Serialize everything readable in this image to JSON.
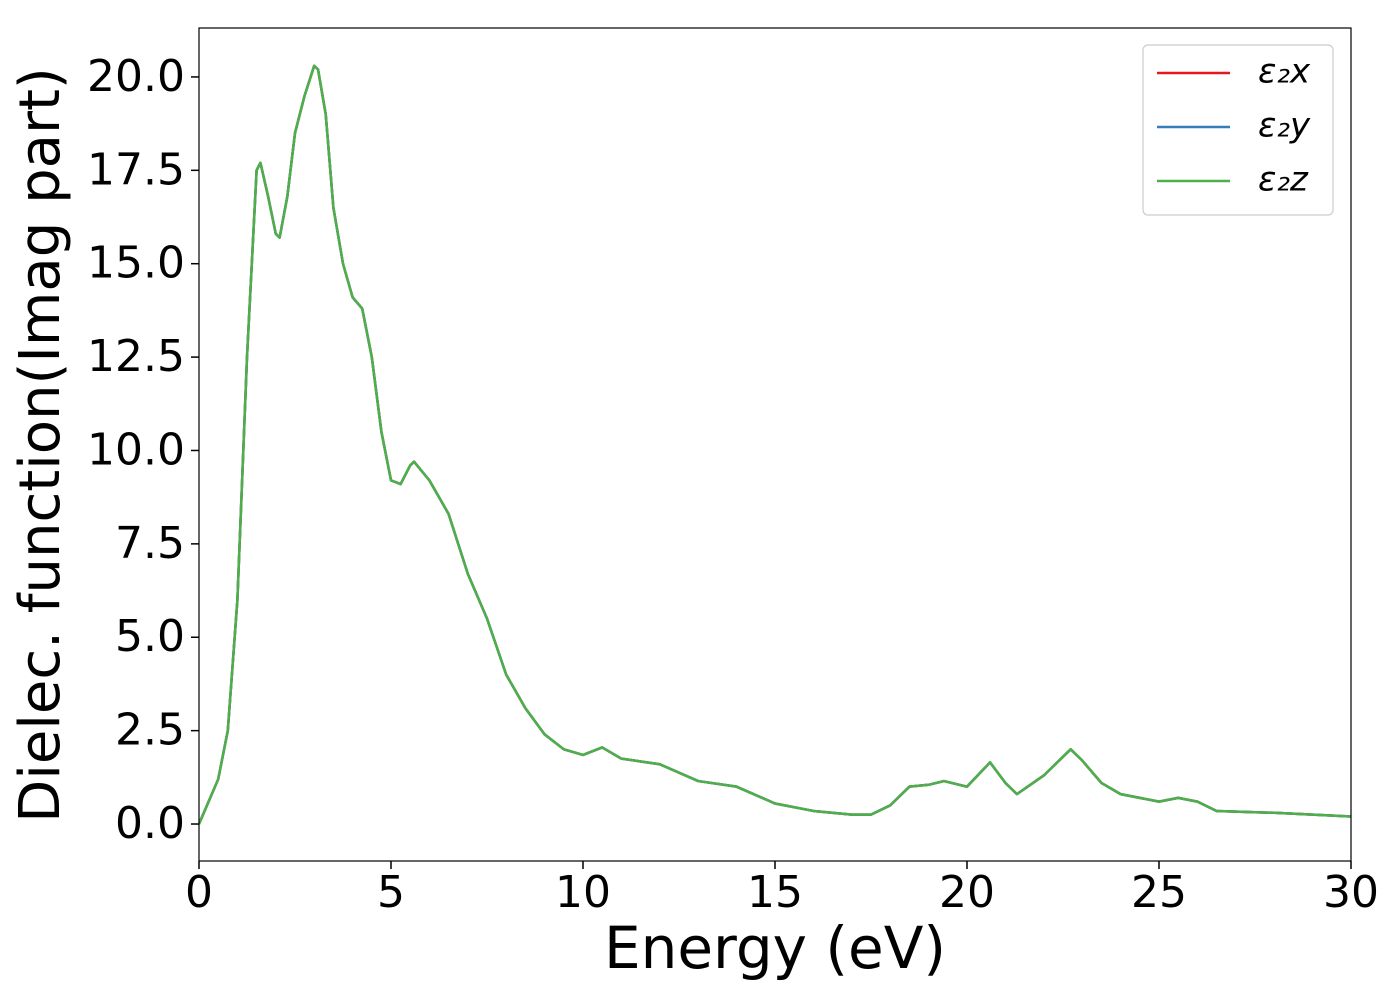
{
  "chart_data": {
    "type": "line",
    "xlabel": "Energy (eV)",
    "ylabel": "Dielec. function(Imag part)",
    "x": [
      0,
      0.25,
      0.5,
      0.75,
      1.0,
      1.25,
      1.5,
      1.6,
      1.8,
      2.0,
      2.1,
      2.3,
      2.5,
      2.75,
      3.0,
      3.1,
      3.3,
      3.5,
      3.75,
      4.0,
      4.25,
      4.5,
      4.75,
      5.0,
      5.25,
      5.5,
      5.6,
      6.0,
      6.5,
      7.0,
      7.5,
      8.0,
      8.5,
      9.0,
      9.5,
      10.0,
      10.5,
      11.0,
      12.0,
      13.0,
      14.0,
      15.0,
      16.0,
      17.0,
      17.5,
      18.0,
      18.5,
      19.0,
      19.4,
      20.0,
      20.6,
      21.0,
      21.3,
      22.0,
      22.7,
      23.0,
      23.5,
      24.0,
      25.0,
      25.5,
      26.0,
      26.5,
      28.0,
      29.0,
      30.0
    ],
    "series": [
      {
        "name": "ε₂x",
        "color": "#e41a1c",
        "values": [
          0.0,
          0.6,
          1.2,
          2.5,
          6.0,
          12.5,
          17.5,
          17.7,
          16.8,
          15.8,
          15.7,
          16.8,
          18.5,
          19.5,
          20.3,
          20.2,
          19.0,
          16.5,
          15.0,
          14.1,
          13.8,
          12.5,
          10.5,
          9.2,
          9.1,
          9.6,
          9.7,
          9.2,
          8.3,
          6.7,
          5.5,
          4.0,
          3.1,
          2.4,
          2.0,
          1.85,
          2.05,
          1.75,
          1.6,
          1.15,
          1.0,
          0.55,
          0.35,
          0.25,
          0.25,
          0.5,
          1.0,
          1.05,
          1.15,
          1.0,
          1.65,
          1.1,
          0.8,
          1.3,
          2.0,
          1.7,
          1.1,
          0.8,
          0.6,
          0.7,
          0.6,
          0.35,
          0.3,
          0.25,
          0.2
        ]
      },
      {
        "name": "ε₂y",
        "color": "#377eb8",
        "values": [
          0.0,
          0.6,
          1.2,
          2.5,
          6.0,
          12.5,
          17.5,
          17.7,
          16.8,
          15.8,
          15.7,
          16.8,
          18.5,
          19.5,
          20.3,
          20.2,
          19.0,
          16.5,
          15.0,
          14.1,
          13.8,
          12.5,
          10.5,
          9.2,
          9.1,
          9.6,
          9.7,
          9.2,
          8.3,
          6.7,
          5.5,
          4.0,
          3.1,
          2.4,
          2.0,
          1.85,
          2.05,
          1.75,
          1.6,
          1.15,
          1.0,
          0.55,
          0.35,
          0.25,
          0.25,
          0.5,
          1.0,
          1.05,
          1.15,
          1.0,
          1.65,
          1.1,
          0.8,
          1.3,
          2.0,
          1.7,
          1.1,
          0.8,
          0.6,
          0.7,
          0.6,
          0.35,
          0.3,
          0.25,
          0.2
        ]
      },
      {
        "name": "ε₂z",
        "color": "#4daf4a",
        "values": [
          0.0,
          0.6,
          1.2,
          2.5,
          6.0,
          12.5,
          17.5,
          17.7,
          16.8,
          15.8,
          15.7,
          16.8,
          18.5,
          19.5,
          20.3,
          20.2,
          19.0,
          16.5,
          15.0,
          14.1,
          13.8,
          12.5,
          10.5,
          9.2,
          9.1,
          9.6,
          9.7,
          9.2,
          8.3,
          6.7,
          5.5,
          4.0,
          3.1,
          2.4,
          2.0,
          1.85,
          2.05,
          1.75,
          1.6,
          1.15,
          1.0,
          0.55,
          0.35,
          0.25,
          0.25,
          0.5,
          1.0,
          1.05,
          1.15,
          1.0,
          1.65,
          1.1,
          0.8,
          1.3,
          2.0,
          1.7,
          1.1,
          0.8,
          0.6,
          0.7,
          0.6,
          0.35,
          0.3,
          0.25,
          0.2
        ]
      }
    ],
    "xlim": [
      0,
      30
    ],
    "xticks": [
      0,
      5,
      10,
      15,
      20,
      25,
      30
    ],
    "ylim": [
      -0.99,
      21.31
    ],
    "yticks": [
      {
        "value": 0,
        "label": "0.0"
      },
      2.5,
      {
        "value": 5,
        "label": "5.0"
      },
      7.5,
      {
        "value": 10,
        "label": "10.0"
      },
      12.5,
      {
        "value": 15,
        "label": "15.0"
      },
      17.5,
      {
        "value": 20,
        "label": "20.0"
      }
    ],
    "grid": false,
    "legend": "upper right"
  }
}
